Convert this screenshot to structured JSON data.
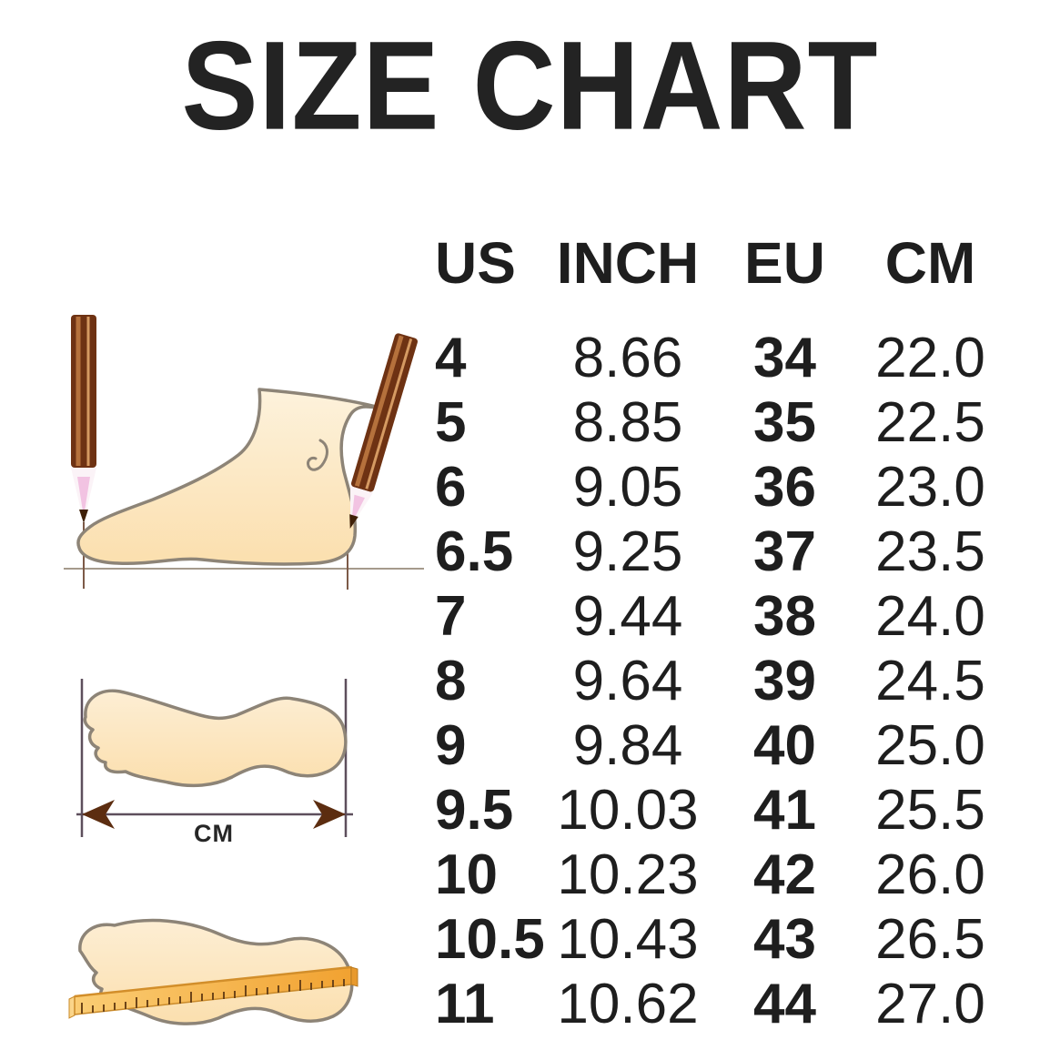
{
  "title": "SIZE CHART",
  "table": {
    "headers": [
      "US",
      "INCH",
      "EU",
      "CM"
    ],
    "rows": [
      [
        "4",
        "8.66",
        "34",
        "22.0"
      ],
      [
        "5",
        "8.85",
        "35",
        "22.5"
      ],
      [
        "6",
        "9.05",
        "36",
        "23.0"
      ],
      [
        "6.5",
        "9.25",
        "37",
        "23.5"
      ],
      [
        "7",
        "9.44",
        "38",
        "24.0"
      ],
      [
        "8",
        "9.64",
        "39",
        "24.5"
      ],
      [
        "9",
        "9.84",
        "40",
        "25.0"
      ],
      [
        "9.5",
        "10.03",
        "41",
        "25.5"
      ],
      [
        "10",
        "10.23",
        "42",
        "26.0"
      ],
      [
        "10.5",
        "10.43",
        "43",
        "26.5"
      ],
      [
        "11",
        "10.62",
        "44",
        "27.0"
      ]
    ]
  },
  "illustrations": {
    "items": [
      {
        "icon": "foot-side-pencil-measure-icon",
        "label": ""
      },
      {
        "icon": "footprint-length-arrow-icon",
        "label": "CM"
      },
      {
        "icon": "footprint-ruler-icon",
        "label": ""
      }
    ]
  },
  "colors": {
    "background": "#ffffff",
    "text": "#232323",
    "foot_fill": "#fce5c0",
    "foot_outline": "#8d8477",
    "pencil_brown": "#6e3213",
    "pencil_lead_pink": "#f2c3e2",
    "ruler_orange": "#f5ae3d",
    "arrow_brown": "#5c2d10",
    "measure_line": "#5d4f5c"
  },
  "chart_data": {
    "type": "table",
    "title": "SIZE CHART",
    "columns": [
      "US",
      "INCH",
      "EU",
      "CM"
    ],
    "rows": [
      [
        4,
        8.66,
        34,
        22.0
      ],
      [
        5,
        8.85,
        35,
        22.5
      ],
      [
        6,
        9.05,
        36,
        23.0
      ],
      [
        6.5,
        9.25,
        37,
        23.5
      ],
      [
        7,
        9.44,
        38,
        24.0
      ],
      [
        8,
        9.64,
        39,
        24.5
      ],
      [
        9,
        9.84,
        40,
        25.0
      ],
      [
        9.5,
        10.03,
        41,
        25.5
      ],
      [
        10,
        10.23,
        42,
        26.0
      ],
      [
        10.5,
        10.43,
        43,
        26.5
      ],
      [
        11,
        10.62,
        44,
        27.0
      ]
    ]
  }
}
